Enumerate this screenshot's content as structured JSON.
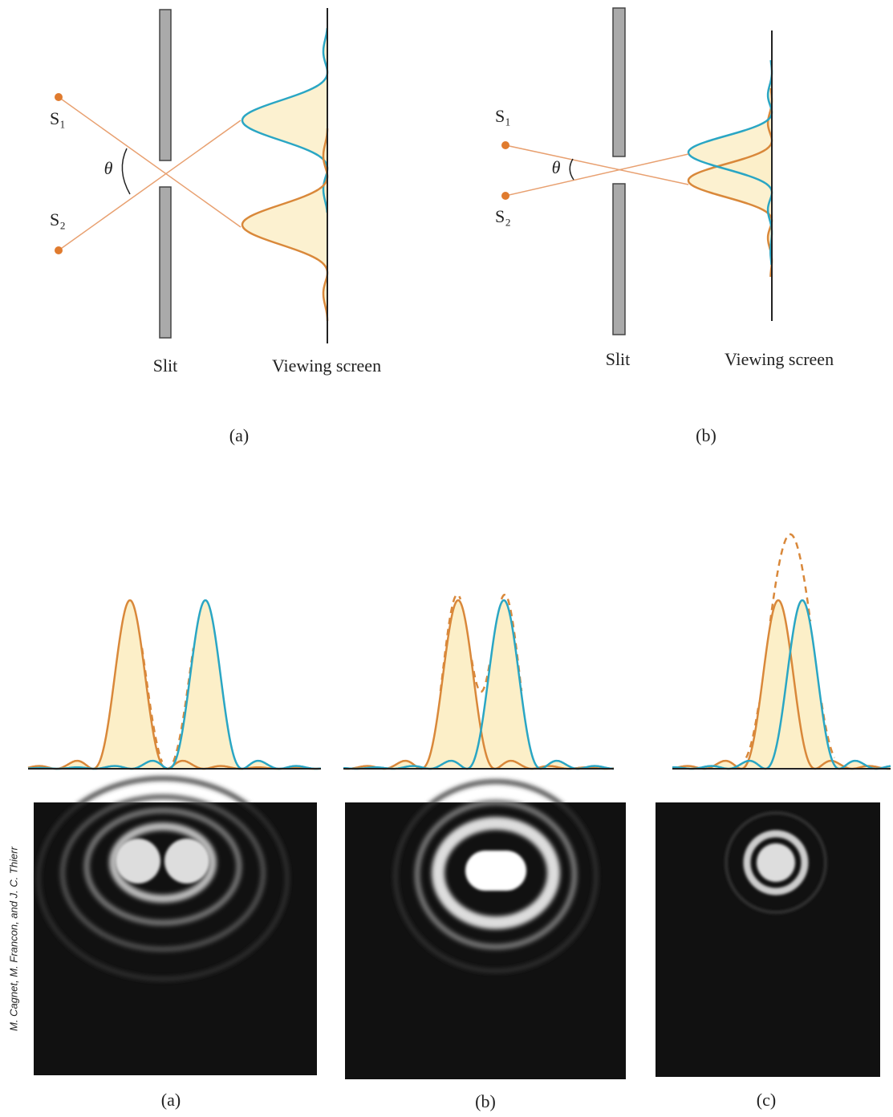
{
  "top": {
    "panels": [
      {
        "source1": "S₁",
        "source2": "S₂",
        "angle": "θ",
        "slit": "Slit",
        "screen": "Viewing screen",
        "caption": "(a)"
      },
      {
        "source1": "S₁",
        "source2": "S₂",
        "angle": "θ",
        "slit": "Slit",
        "screen": "Viewing screen",
        "caption": "(b)"
      }
    ]
  },
  "bottom": {
    "panels": [
      {
        "caption": "(a)"
      },
      {
        "caption": "(b)"
      },
      {
        "caption": "(c)"
      }
    ],
    "credit": "M. Cagnet, M. Francon, and J. C. Thierr"
  }
}
